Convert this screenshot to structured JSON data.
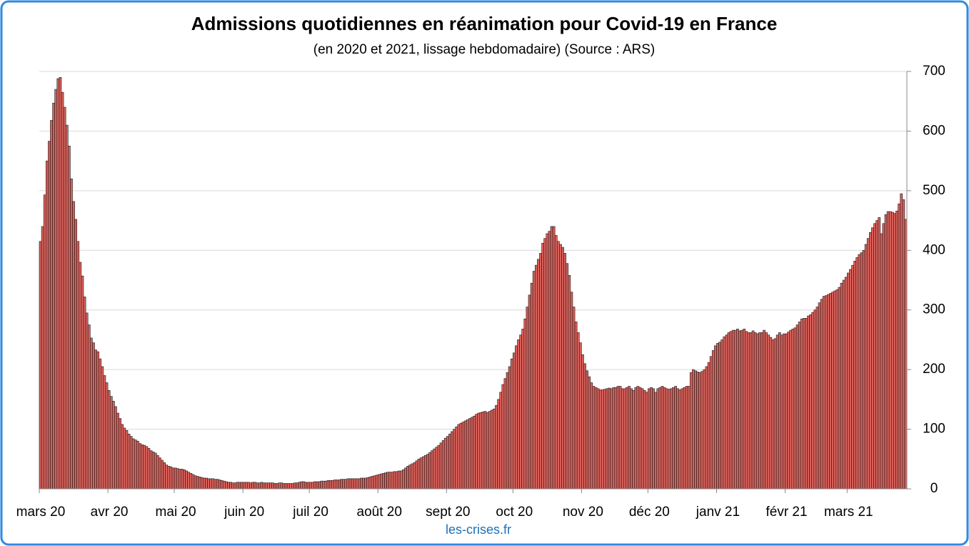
{
  "chart_data": {
    "type": "bar",
    "title": "Admissions quotidiennes en réanimation pour Covid-19 en France",
    "subtitle": "(en 2020 et 2021, lissage hebdomadaire) (Source : ARS)",
    "source": "les-crises.fr",
    "color": "#d9605a",
    "ylim": [
      0,
      700
    ],
    "yticks": [
      0,
      100,
      200,
      300,
      400,
      500,
      600,
      700
    ],
    "grid": true,
    "categories": [
      "mars 20",
      null,
      null,
      null,
      null,
      null,
      null,
      null,
      null,
      null,
      null,
      null,
      null,
      null,
      null,
      null,
      null,
      null,
      null,
      null,
      null,
      null,
      null,
      null,
      null,
      null,
      null,
      null,
      null,
      null,
      null,
      "avr 20",
      null,
      null,
      null,
      null,
      null,
      null,
      null,
      null,
      null,
      null,
      null,
      null,
      null,
      null,
      null,
      null,
      null,
      null,
      null,
      null,
      null,
      null,
      null,
      null,
      null,
      null,
      null,
      null,
      null,
      "mai 20",
      null,
      null,
      null,
      null,
      null,
      null,
      null,
      null,
      null,
      null,
      null,
      null,
      null,
      null,
      null,
      null,
      null,
      null,
      null,
      null,
      null,
      null,
      null,
      null,
      null,
      null,
      null,
      null,
      null,
      null,
      "juin 20",
      null,
      null,
      null,
      null,
      null,
      null,
      null,
      null,
      null,
      null,
      null,
      null,
      null,
      null,
      null,
      null,
      null,
      null,
      null,
      null,
      null,
      null,
      null,
      null,
      null,
      null,
      null,
      null,
      null,
      "juil 20",
      null,
      null,
      null,
      null,
      null,
      null,
      null,
      null,
      null,
      null,
      null,
      null,
      null,
      null,
      null,
      null,
      null,
      null,
      null,
      null,
      null,
      null,
      null,
      null,
      null,
      null,
      null,
      null,
      null,
      null,
      "août 20",
      null,
      null,
      null,
      null,
      null,
      null,
      null,
      null,
      null,
      null,
      null,
      null,
      null,
      null,
      null,
      null,
      null,
      null,
      null,
      null,
      null,
      null,
      null,
      null,
      null,
      null,
      null,
      null,
      null,
      null,
      "sept 20",
      null,
      null,
      null,
      null,
      null,
      null,
      null,
      null,
      null,
      null,
      null,
      null,
      null,
      null,
      null,
      null,
      null,
      null,
      null,
      null,
      null,
      null,
      null,
      null,
      null,
      null,
      null,
      null,
      null,
      "oct 20",
      null,
      null,
      null,
      null,
      null,
      null,
      null,
      null,
      null,
      null,
      null,
      null,
      null,
      null,
      null,
      null,
      null,
      null,
      null,
      null,
      null,
      null,
      null,
      null,
      null,
      null,
      null,
      null,
      null,
      null,
      "nov 20",
      null,
      null,
      null,
      null,
      null,
      null,
      null,
      null,
      null,
      null,
      null,
      null,
      null,
      null,
      null,
      null,
      null,
      null,
      null,
      null,
      null,
      null,
      null,
      null,
      null,
      null,
      null,
      null,
      null,
      "déc 20",
      null,
      null,
      null,
      null,
      null,
      null,
      null,
      null,
      null,
      null,
      null,
      null,
      null,
      null,
      null,
      null,
      null,
      null,
      null,
      null,
      null,
      null,
      null,
      null,
      null,
      null,
      null,
      null,
      null,
      null,
      "janv 21",
      null,
      null,
      null,
      null,
      null,
      null,
      null,
      null,
      null,
      null,
      null,
      null,
      null,
      null,
      null,
      null,
      null,
      null,
      null,
      null,
      null,
      null,
      null,
      null,
      null,
      null,
      null,
      null,
      null,
      null,
      "févr 21",
      null,
      null,
      null,
      null,
      null,
      null,
      null,
      null,
      null,
      null,
      null,
      null,
      null,
      null,
      null,
      null,
      null,
      null,
      null,
      null,
      null,
      null,
      null,
      null,
      null,
      null,
      null,
      "mars 21",
      null,
      null,
      null,
      null,
      null,
      null,
      null,
      null,
      null,
      null,
      null,
      null,
      null,
      null,
      null,
      null,
      null,
      null,
      null,
      null,
      null,
      null,
      null,
      null,
      null,
      null
    ],
    "values": [
      415,
      440,
      493,
      550,
      583,
      618,
      647,
      670,
      688,
      690,
      665,
      640,
      610,
      575,
      520,
      482,
      452,
      415,
      380,
      357,
      322,
      295,
      275,
      253,
      245,
      233,
      230,
      218,
      205,
      190,
      178,
      165,
      155,
      147,
      138,
      127,
      118,
      108,
      102,
      98,
      92,
      88,
      84,
      82,
      80,
      76,
      74,
      73,
      71,
      68,
      64,
      62,
      60,
      56,
      52,
      48,
      44,
      40,
      38,
      37,
      35,
      35,
      34,
      33,
      33,
      32,
      30,
      28,
      26,
      24,
      22,
      21,
      20,
      19,
      18,
      18,
      17,
      17,
      17,
      16,
      16,
      15,
      14,
      13,
      12,
      11,
      11,
      10,
      10,
      11,
      11,
      11,
      11,
      11,
      11,
      10,
      11,
      11,
      10,
      10,
      11,
      10,
      10,
      10,
      10,
      10,
      9,
      9,
      10,
      10,
      9,
      9,
      9,
      9,
      9,
      10,
      10,
      11,
      12,
      12,
      11,
      11,
      11,
      11,
      12,
      12,
      12,
      13,
      13,
      13,
      14,
      14,
      14,
      15,
      15,
      15,
      16,
      16,
      16,
      17,
      17,
      17,
      17,
      17,
      17,
      18,
      18,
      18,
      19,
      20,
      21,
      22,
      23,
      24,
      25,
      26,
      27,
      28,
      28,
      28,
      29,
      29,
      30,
      30,
      32,
      35,
      38,
      40,
      42,
      44,
      47,
      50,
      52,
      54,
      56,
      58,
      61,
      64,
      67,
      70,
      73,
      77,
      81,
      85,
      88,
      92,
      96,
      100,
      104,
      108,
      110,
      112,
      114,
      116,
      118,
      120,
      122,
      125,
      127,
      128,
      129,
      130,
      128,
      130,
      132,
      134,
      140,
      150,
      162,
      175,
      185,
      195,
      205,
      218,
      228,
      240,
      250,
      258,
      268,
      285,
      305,
      325,
      345,
      365,
      375,
      385,
      395,
      412,
      420,
      428,
      432,
      440,
      440,
      425,
      415,
      410,
      405,
      395,
      378,
      358,
      330,
      305,
      280,
      262,
      245,
      225,
      210,
      198,
      188,
      178,
      172,
      170,
      168,
      166,
      166,
      167,
      168,
      169,
      168,
      170,
      170,
      172,
      172,
      168,
      168,
      170,
      172,
      168,
      165,
      170,
      172,
      170,
      168,
      165,
      162,
      168,
      170,
      168,
      162,
      168,
      170,
      172,
      170,
      168,
      167,
      168,
      170,
      172,
      168,
      166,
      168,
      170,
      172,
      172,
      195,
      200,
      198,
      196,
      195,
      197,
      200,
      205,
      212,
      222,
      232,
      240,
      244,
      246,
      250,
      255,
      258,
      262,
      264,
      266,
      266,
      268,
      265,
      266,
      268,
      264,
      262,
      262,
      265,
      262,
      260,
      262,
      262,
      266,
      262,
      258,
      254,
      250,
      252,
      258,
      262,
      258,
      260,
      260,
      263,
      266,
      268,
      270,
      275,
      280,
      285,
      286,
      286,
      290,
      292,
      296,
      300,
      305,
      312,
      318,
      323,
      324,
      326,
      328,
      330,
      332,
      334,
      338,
      345,
      350,
      355,
      362,
      368,
      375,
      382,
      388,
      393,
      396,
      400,
      410,
      420,
      430,
      438,
      445,
      450,
      455,
      428,
      445,
      460,
      465,
      465,
      464,
      462,
      466,
      478,
      495,
      485,
      452
    ]
  }
}
